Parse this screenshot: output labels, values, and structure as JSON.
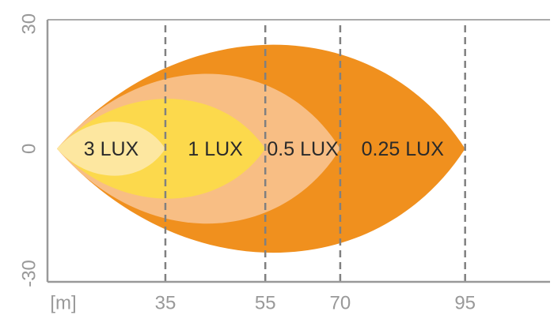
{
  "chart_data": {
    "type": "beam",
    "x_label": "[m]",
    "xlim": [
      11.4,
      112
    ],
    "xticks": [
      35,
      55,
      70,
      95
    ],
    "ylim": [
      -32,
      31
    ],
    "yticks": [
      30,
      0,
      -30
    ],
    "grid": true,
    "zones": [
      {
        "name": "3 LUX",
        "color": "#fde7a0",
        "reach": 35,
        "halfwidth": 6.5
      },
      {
        "name": "1 LUX",
        "color": "#fcd94c",
        "reach": 55,
        "halfwidth": 12
      },
      {
        "name": "0.5 LUX",
        "color": "#f8be84",
        "reach": 70,
        "halfwidth": 18
      },
      {
        "name": "0.25 LUX",
        "color": "#f0901e",
        "reach": 95,
        "halfwidth": 25
      }
    ]
  }
}
